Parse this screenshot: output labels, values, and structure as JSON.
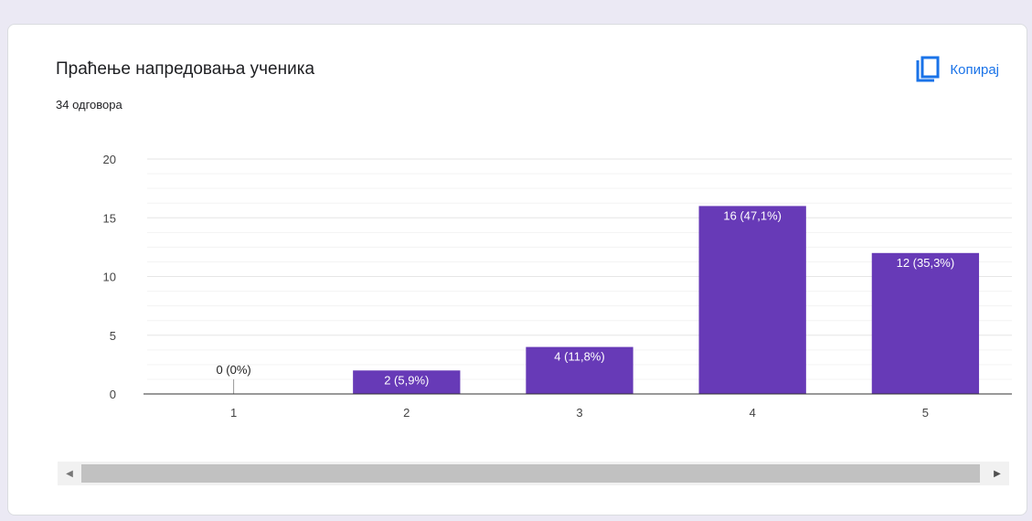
{
  "card": {
    "title": "Праћење напредовања ученика",
    "subtitle": "34 одговора",
    "copy_label": "Копирај",
    "copy_icon": "copy-icon"
  },
  "chart_data": {
    "type": "bar",
    "title": "Праћење напредовања ученика",
    "xlabel": "",
    "ylabel": "",
    "categories": [
      "1",
      "2",
      "3",
      "4",
      "5"
    ],
    "values": [
      0,
      2,
      4,
      16,
      12
    ],
    "data_labels": [
      "0 (0%)",
      "2 (5,9%)",
      "4 (11,8%)",
      "16 (47,1%)",
      "12 (35,3%)"
    ],
    "ylim": [
      0,
      20
    ],
    "yticks": [
      "0",
      "5",
      "10",
      "15",
      "20"
    ],
    "grid": true,
    "bar_color": "#673ab7"
  },
  "scrollbar": {
    "left_arrow": "◀",
    "right_arrow": "▶"
  }
}
